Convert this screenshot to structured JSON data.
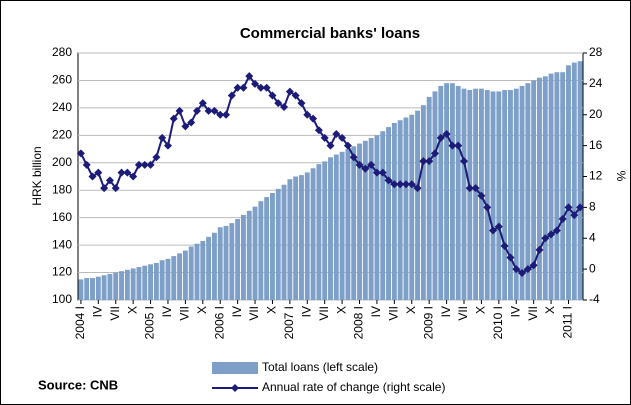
{
  "chart_data": {
    "type": "bar_line",
    "title": "Commercial banks' loans",
    "y_label": "HRK billion",
    "y2_label": "%",
    "source": "Source: CNB",
    "categories": [
      "2004 I",
      null,
      null,
      "IV",
      null,
      null,
      "VII",
      null,
      null,
      "X",
      null,
      null,
      "2005 I",
      null,
      null,
      "IV",
      null,
      null,
      "VII",
      null,
      null,
      "X",
      null,
      null,
      "2006 I",
      null,
      null,
      "IV",
      null,
      null,
      "VII",
      null,
      null,
      "X",
      null,
      null,
      "2007 I",
      null,
      null,
      "IV",
      null,
      null,
      "VII",
      null,
      null,
      "X",
      null,
      null,
      "2008 I",
      null,
      null,
      "IV",
      null,
      null,
      "VII",
      null,
      null,
      "X",
      null,
      null,
      "2009 I",
      null,
      null,
      "IV",
      null,
      null,
      "VII",
      null,
      null,
      "X",
      null,
      null,
      "2010 I",
      null,
      null,
      "IV",
      null,
      null,
      "VII",
      null,
      null,
      "X",
      null,
      null,
      "2011 I",
      null,
      null
    ],
    "series": [
      {
        "name": "Total loans (left scale)",
        "type": "bar",
        "color": "#7d9fc8",
        "values": [
          115,
          116,
          116,
          117,
          118,
          119,
          120,
          121,
          122,
          123,
          124,
          125,
          126,
          127,
          129,
          130,
          132,
          134,
          136,
          139,
          141,
          143,
          146,
          149,
          153,
          154,
          156,
          159,
          162,
          165,
          168,
          172,
          175,
          178,
          181,
          184,
          188,
          190,
          191,
          193,
          196,
          199,
          201,
          204,
          206,
          208,
          210,
          212,
          214,
          216,
          218,
          220,
          223,
          226,
          229,
          231,
          233,
          235,
          238,
          242,
          248,
          252,
          256,
          258,
          258,
          256,
          254,
          253,
          254,
          254,
          253,
          252,
          252,
          253,
          253,
          254,
          256,
          258,
          260,
          262,
          263,
          265,
          266,
          266,
          271,
          273,
          274
        ]
      },
      {
        "name": "Annual rate of change (right scale)",
        "type": "line",
        "axis": "y2",
        "color": "#1c1c78",
        "values": [
          15,
          13.5,
          12,
          12.5,
          10.5,
          11.5,
          10.5,
          12.5,
          12.5,
          12,
          13.5,
          13.5,
          13.5,
          14.5,
          17,
          16,
          19.5,
          20.5,
          18.5,
          19,
          20.5,
          21.5,
          20.5,
          20.5,
          20,
          20,
          22.5,
          23.5,
          23.5,
          25,
          24,
          23.5,
          23.5,
          22.5,
          21.5,
          21,
          23,
          22.5,
          21.5,
          20,
          19.5,
          18,
          17,
          16,
          17.5,
          17,
          16,
          14.5,
          13.5,
          13,
          13.5,
          12.5,
          12.5,
          11.5,
          11,
          11,
          11,
          11,
          10.5,
          14,
          14,
          15,
          17,
          17.5,
          16,
          16,
          14,
          10.5,
          10.5,
          9.5,
          8,
          5,
          5.5,
          3,
          1.5,
          0,
          -0.5,
          0,
          0.5,
          2.5,
          4,
          4.5,
          5,
          6.5,
          8,
          7,
          8
        ]
      }
    ],
    "ylim": [
      100,
      280
    ],
    "yticks": [
      100,
      120,
      140,
      160,
      180,
      200,
      220,
      240,
      260,
      280
    ],
    "y2lim": [
      -4,
      28
    ],
    "y2ticks": [
      -4,
      0,
      4,
      8,
      12,
      16,
      20,
      24,
      28
    ],
    "grid": true
  }
}
